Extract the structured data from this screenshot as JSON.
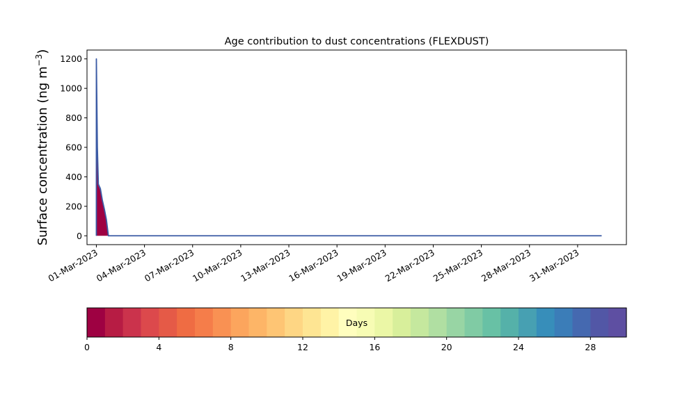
{
  "chart_data": [
    {
      "type": "area",
      "title": "Age contribution to dust concentrations (FLEXDUST)",
      "xlabel": "",
      "ylabel": "Surface concentration (ng m",
      "ylabel_sup": "−3",
      "ylabel_close": ")",
      "xlim": [
        "2023-02-28T10:00",
        "2023-04-03T01:00"
      ],
      "ylim": [
        -60,
        1260
      ],
      "y_ticks": [
        0,
        200,
        400,
        600,
        800,
        1000,
        1200
      ],
      "x_ticks": [
        {
          "date": "2023-03-01",
          "label": "01-Mar-2023"
        },
        {
          "date": "2023-03-04",
          "label": "04-Mar-2023"
        },
        {
          "date": "2023-03-07",
          "label": "07-Mar-2023"
        },
        {
          "date": "2023-03-10",
          "label": "10-Mar-2023"
        },
        {
          "date": "2023-03-13",
          "label": "13-Mar-2023"
        },
        {
          "date": "2023-03-16",
          "label": "16-Mar-2023"
        },
        {
          "date": "2023-03-19",
          "label": "19-Mar-2023"
        },
        {
          "date": "2023-03-22",
          "label": "22-Mar-2023"
        },
        {
          "date": "2023-03-25",
          "label": "25-Mar-2023"
        },
        {
          "date": "2023-03-28",
          "label": "28-Mar-2023"
        },
        {
          "date": "2023-03-31",
          "label": "31-Mar-2023"
        }
      ],
      "grid": false,
      "stacked": true,
      "series": [
        {
          "color": "#9e0142",
          "x": [
            "2023-03-01T00:00",
            "2023-03-01T00:01",
            "2023-03-01T01:30",
            "2023-03-01T03:00",
            "2023-03-01T06:00",
            "2023-03-01T09:00",
            "2023-03-01T12:00",
            "2023-03-01T15:00",
            "2023-03-01T18:00",
            "2023-03-01T21:00",
            "2023-03-02T00:00",
            "2023-03-02T06:00",
            "2023-03-02T12:00",
            "2023-03-02T18:00",
            "2023-03-03T00:00",
            "2023-03-03T03:00",
            "2023-03-03T06:00",
            "2023-03-03T12:00",
            "2023-03-03T18:00",
            "2023-03-04T00:00",
            "2023-03-04T03:00",
            "2023-03-04T06:00",
            "2023-03-04T09:00",
            "2023-03-04T12:00",
            "2023-03-04T18:00",
            "2023-03-05T00:00",
            "2023-03-05T03:00",
            "2023-03-05T06:00",
            "2023-03-05T09:00",
            "2023-03-05T12:00",
            "2023-03-05T18:00",
            "2023-03-06T00:00",
            "2023-03-06T06:00",
            "2023-03-06T12:00",
            "2023-03-06T18:00",
            "2023-03-07T00:00",
            "2023-03-07T06:00",
            "2023-03-07T12:00",
            "2023-03-08T00:00",
            "2023-03-08T12:00",
            "2023-03-08T18:00",
            "2023-03-09T00:00",
            "2023-03-09T12:00",
            "2023-03-09T18:00",
            "2023-03-09T21:00",
            "2023-03-10T00:00",
            "2023-03-10T03:00",
            "2023-03-10T06:00",
            "2023-03-10T09:00",
            "2023-03-10T12:00",
            "2023-03-10T15:00",
            "2023-03-10T18:00",
            "2023-03-10T21:00",
            "2023-03-11T00:00",
            "2023-03-11T03:00",
            "2023-03-11T06:00",
            "2023-03-11T09:00",
            "2023-03-11T12:00",
            "2023-03-11T15:00",
            "2023-03-11T18:00",
            "2023-03-11T21:00",
            "2023-03-12T00:00",
            "2023-03-12T03:00",
            "2023-03-12T06:00",
            "2023-03-12T09:00",
            "2023-03-12T12:00",
            "2023-03-12T15:00",
            "2023-03-12T18:00",
            "2023-03-13T00:00",
            "2023-03-13T06:00",
            "2023-03-13T12:00",
            "2023-03-13T18:00",
            "2023-03-14T00:00",
            "2023-03-15T00:00",
            "2023-03-16T00:00",
            "2023-03-17T00:00",
            "2023-03-18T00:00",
            "2023-03-19T00:00",
            "2023-03-20T00:00",
            "2023-03-21T00:00",
            "2023-03-22T00:00",
            "2023-03-23T00:00",
            "2023-03-24T00:00",
            "2023-03-25T00:00",
            "2023-03-26T00:00",
            "2023-03-27T00:00",
            "2023-03-28T00:00",
            "2023-03-28T18:00",
            "2023-03-29T00:00",
            "2023-03-29T06:00",
            "2023-03-29T12:00",
            "2023-03-29T18:00",
            "2023-03-30T00:00",
            "2023-03-30T06:00",
            "2023-03-31T00:00",
            "2023-04-01T00:00",
            "2023-04-01T12:00"
          ],
          "y": [
            0,
            1000,
            570,
            340,
            310,
            230,
            170,
            100,
            0,
            0,
            0,
            0,
            0,
            0,
            0,
            0,
            0,
            0,
            0,
            0,
            0,
            0,
            0,
            0,
            0,
            0,
            0,
            0,
            0,
            0,
            0,
            0,
            0,
            0,
            0,
            0,
            0,
            0,
            0,
            0,
            0,
            0,
            0,
            0,
            0,
            0,
            0,
            0,
            0,
            0,
            0,
            0,
            0,
            0,
            0,
            0,
            0,
            0,
            0,
            0,
            0,
            0,
            0,
            0,
            0,
            0,
            0,
            0,
            0,
            0,
            0,
            0,
            0,
            0,
            0,
            0,
            0,
            0,
            0,
            0,
            0,
            0,
            0,
            0,
            0,
            0,
            0,
            0,
            0,
            0,
            0,
            0,
            0,
            0,
            0,
            0,
            0
          ]
        }
      ],
      "totals": {
        "x": [
          "2023-03-01T00:00",
          "2023-03-01T00:01",
          "2023-03-01T01:30",
          "2023-03-01T03:00",
          "2023-03-01T06:00",
          "2023-03-01T09:00",
          "2023-03-01T12:00",
          "2023-03-01T15:00",
          "2023-03-01T18:00",
          "2023-03-01T21:00",
          "2023-03-02T00:00",
          "2023-03-02T06:00",
          "2023-03-02T12:00",
          "2023-03-02T18:00",
          "2023-03-03T00:00",
          "2023-03-03T03:00",
          "2023-03-03T06:00",
          "2023-03-03T12:00",
          "2023-03-03T18:00",
          "2023-03-04T00:00",
          "2023-03-04T03:00",
          "2023-03-04T06:00",
          "2023-03-04T09:00",
          "2023-03-04T12:00",
          "2023-03-04T18:00",
          "2023-03-05T00:00",
          "2023-03-05T03:00",
          "2023-03-05T06:00",
          "2023-03-05T09:00",
          "2023-03-05T12:00",
          "2023-03-05T18:00",
          "2023-03-06T00:00",
          "2023-03-06T06:00",
          "2023-03-06T12:00",
          "2023-03-06T18:00",
          "2023-03-07T00:00",
          "2023-03-07T06:00",
          "2023-03-07T12:00",
          "2023-03-08T00:00",
          "2023-03-08T12:00",
          "2023-03-08T18:00",
          "2023-03-09T00:00",
          "2023-03-09T12:00",
          "2023-03-09T18:00",
          "2023-03-09T21:00",
          "2023-03-10T00:00",
          "2023-03-10T03:00",
          "2023-03-10T06:00",
          "2023-03-10T09:00",
          "2023-03-10T12:00",
          "2023-03-10T15:00",
          "2023-03-10T18:00",
          "2023-03-10T21:00",
          "2023-03-11T00:00",
          "2023-03-11T03:00",
          "2023-03-11T06:00",
          "2023-03-11T09:00",
          "2023-03-11T12:00",
          "2023-03-11T15:00",
          "2023-03-11T18:00",
          "2023-03-11T21:00",
          "2023-03-12T00:00",
          "2023-03-12T03:00",
          "2023-03-12T06:00",
          "2023-03-12T09:00",
          "2023-03-12T12:00",
          "2023-03-12T15:00",
          "2023-03-12T18:00",
          "2023-03-13T00:00",
          "2023-03-13T06:00",
          "2023-03-13T12:00",
          "2023-03-13T18:00",
          "2023-03-14T00:00",
          "2023-03-15T00:00",
          "2023-03-16T00:00",
          "2023-03-17T00:00",
          "2023-03-18T00:00",
          "2023-03-19T00:00",
          "2023-03-20T00:00",
          "2023-03-21T00:00",
          "2023-03-22T00:00",
          "2023-03-23T00:00",
          "2023-03-24T00:00",
          "2023-03-25T00:00",
          "2023-03-26T00:00",
          "2023-03-27T00:00",
          "2023-03-28T00:00",
          "2023-03-28T18:00",
          "2023-03-29T00:00",
          "2023-03-29T06:00",
          "2023-03-29T12:00",
          "2023-03-29T18:00",
          "2023-03-30T00:00",
          "2023-03-30T06:00",
          "2023-03-31T00:00",
          "2023-04-01T00:00",
          "2023-04-01T12:00"
        ],
        "y": [
          0,
          1200,
          600,
          350,
          320,
          240,
          180,
          110,
          0,
          0,
          0,
          0,
          0,
          0,
          0,
          0,
          0,
          0,
          0,
          0,
          0,
          0,
          0,
          0,
          0,
          0,
          0,
          0,
          0,
          0,
          0,
          0,
          0,
          0,
          0,
          0,
          0,
          0,
          0,
          0,
          0,
          0,
          0,
          0,
          0,
          0,
          0,
          0,
          0,
          0,
          0,
          0,
          0,
          0,
          0,
          0,
          0,
          0,
          0,
          0,
          0,
          0,
          0,
          0,
          0,
          0,
          0,
          0,
          0,
          0,
          0,
          0,
          0,
          0,
          0,
          0,
          0,
          0,
          0,
          0,
          0,
          0,
          0,
          0,
          0,
          0,
          0,
          0,
          0,
          0,
          0,
          0,
          0,
          0,
          0,
          0,
          0
        ]
      },
      "colorbar": {
        "label": "Days",
        "range": [
          0,
          30
        ],
        "ticks": [
          0,
          4,
          8,
          12,
          16,
          20,
          24,
          28
        ],
        "colors": [
          "#9e0142",
          "#b71c44",
          "#cb334c",
          "#dc494c",
          "#e55a47",
          "#ef6c43",
          "#f57d4a",
          "#f99153",
          "#fca55d",
          "#fdb567",
          "#fec574",
          "#fed684",
          "#fee593",
          "#fff3a6",
          "#fffebe",
          "#f7fcb4",
          "#ebf7a6",
          "#d8ef9b",
          "#c5e89e",
          "#b0dfa2",
          "#98d5a4",
          "#80cba4",
          "#68c1a5",
          "#55b1a9",
          "#47a0b2",
          "#378eba",
          "#3b7db8",
          "#4569b0",
          "#5257a6",
          "#5e4fa2"
        ]
      }
    }
  ]
}
